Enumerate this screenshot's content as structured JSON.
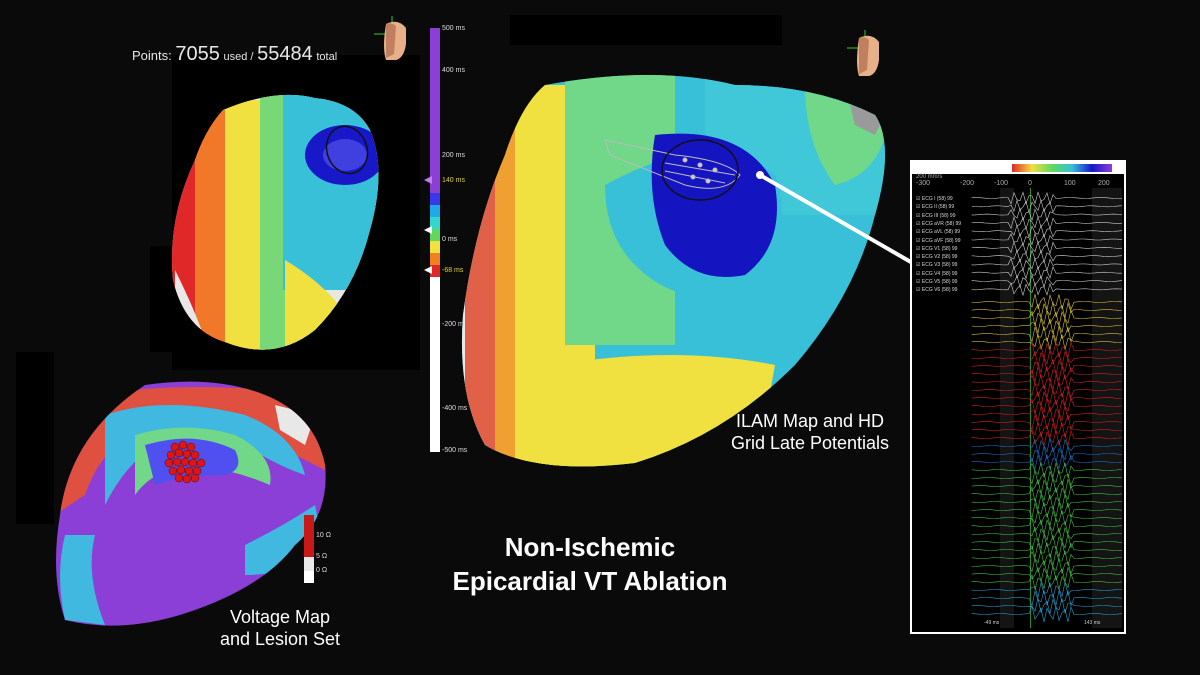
{
  "points": {
    "label": "Points:",
    "used": "7055",
    "used_label": "used /",
    "total": "55484",
    "total_label": "total"
  },
  "ilam_scale": {
    "ticks": [
      "500 ms",
      "400 ms",
      "200 ms",
      "140 ms",
      "0 ms",
      "-68 ms",
      "-200 ms",
      "-400 ms",
      "-500 ms"
    ]
  },
  "voltage_scale": {
    "ticks": [
      "10 Ω",
      "5 Ω",
      "0 Ω"
    ]
  },
  "captions": {
    "ilam_line1": "ILAM Map and HD",
    "ilam_line2": "Grid Late Potentials",
    "voltage_line1": "Voltage Map",
    "voltage_line2": "and Lesion Set"
  },
  "title": {
    "line1": "Non-Ischemic",
    "line2": "Epicardial VT Ablation"
  },
  "egm": {
    "header": "200 mm/s",
    "axis": [
      "-300",
      "-200",
      "-100",
      "0",
      "100",
      "200"
    ],
    "ecg_rows": [
      "ECG I (58) 99",
      "ECG II (58) 99",
      "ECG III (58) 99",
      "ECG aVR (58) 99",
      "ECG aVL (58) 99",
      "ECG aVF (58) 99",
      "ECG V1 (58) 99",
      "ECG V2 (58) 99",
      "ECG V3 (58) 99",
      "ECG V4 (58) 99",
      "ECG V5 (58) 99",
      "ECG V6 (58) 99"
    ],
    "footer_left": "-49 ms",
    "footer_right": "143 ms"
  },
  "colors": {
    "purple": "#8b3fd6",
    "blue": "#1010c8",
    "cyan": "#30c8d8",
    "green": "#60d890",
    "yellow": "#f0e040",
    "orange": "#f09830",
    "red": "#e02828"
  }
}
